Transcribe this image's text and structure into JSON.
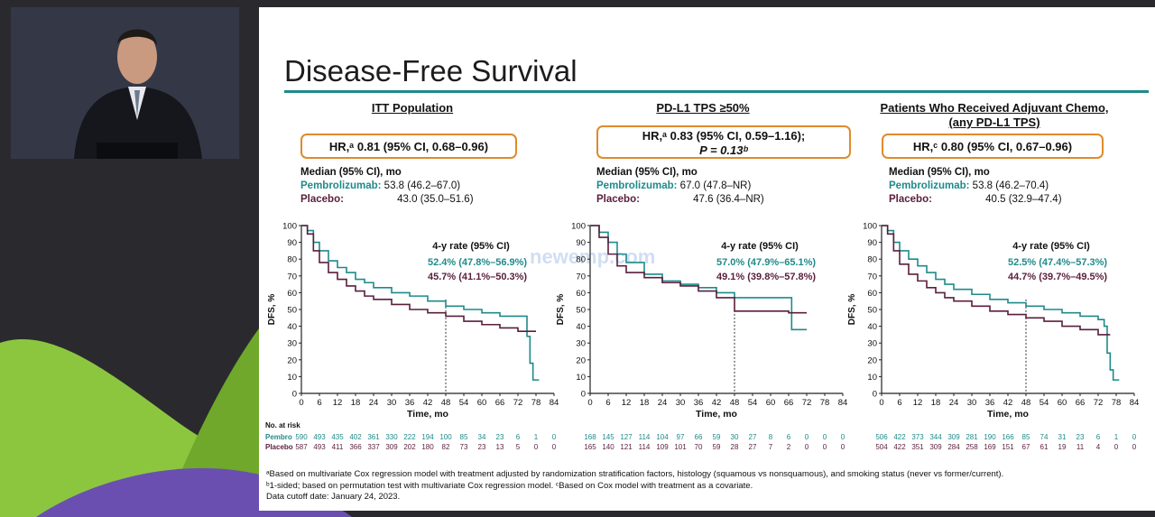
{
  "slide": {
    "title": "Disease-Free Survival",
    "watermark": "newemp.com"
  },
  "colors": {
    "pembro": "#1f8a8a",
    "placebo": "#5a1e3c",
    "accent_box": "#e08a2c",
    "title_rule": "#1f8a8a"
  },
  "panels": [
    {
      "heading": "ITT Population",
      "hr_text": "HR,ᵃ 0.81 (95% CI, 0.68–0.96)",
      "hr_line2": "",
      "median_title": "Median (95% CI), mo",
      "pembro_label": "Pembrolizumab:",
      "pembro_median": "53.8 (46.2–67.0)",
      "placebo_label": "Placebo:",
      "placebo_median": "43.0 (35.0–51.6)",
      "rate_title": "4-y rate (95% CI)",
      "pembro_rate": "52.4% (47.8%–56.9%)",
      "placebo_rate": "45.7% (41.1%–50.3%)"
    },
    {
      "heading": "PD-L1 TPS ≥50%",
      "hr_text": "HR,ᵃ 0.83 (95% CI, 0.59–1.16);",
      "hr_line2": "P = 0.13ᵇ",
      "median_title": "Median (95% CI), mo",
      "pembro_label": "Pembrolizumab:",
      "pembro_median": "67.0 (47.8–NR)",
      "placebo_label": "Placebo:",
      "placebo_median": "47.6 (36.4–NR)",
      "rate_title": "4-y rate (95% CI)",
      "pembro_rate": "57.0% (47.9%–65.1%)",
      "placebo_rate": "49.1% (39.8%–57.8%)"
    },
    {
      "heading": "Patients Who Received Adjuvant Chemo,",
      "heading2": "(any PD-L1 TPS)",
      "hr_text": "HR,ᶜ 0.80 (95% CI, 0.67–0.96)",
      "hr_line2": "",
      "median_title": "Median (95% CI), mo",
      "pembro_label": "Pembrolizumab:",
      "pembro_median": "53.8 (46.2–70.4)",
      "placebo_label": "Placebo:",
      "placebo_median": "40.5 (32.9–47.4)",
      "rate_title": "4-y rate (95% CI)",
      "pembro_rate": "52.5% (47.4%–57.3%)",
      "placebo_rate": "44.7% (39.7%–49.5%)"
    }
  ],
  "risk_table": {
    "title": "No. at risk",
    "pembro_label": "Pembro",
    "placebo_label": "Placebo",
    "itt_pembro": [
      "590",
      "493",
      "435",
      "402",
      "361",
      "330",
      "222",
      "194",
      "100",
      "85",
      "34",
      "23",
      "6",
      "1",
      "0"
    ],
    "itt_placebo": [
      "587",
      "493",
      "411",
      "366",
      "337",
      "309",
      "202",
      "180",
      "82",
      "73",
      "23",
      "13",
      "5",
      "0",
      "0"
    ],
    "pdl1_pembro": [
      "168",
      "145",
      "127",
      "114",
      "104",
      "97",
      "66",
      "59",
      "30",
      "27",
      "8",
      "6",
      "0",
      "0",
      "0"
    ],
    "pdl1_placebo": [
      "165",
      "140",
      "121",
      "114",
      "109",
      "101",
      "70",
      "59",
      "28",
      "27",
      "7",
      "2",
      "0",
      "0",
      "0"
    ],
    "chemo_pembro": [
      "506",
      "422",
      "373",
      "344",
      "309",
      "281",
      "190",
      "166",
      "85",
      "74",
      "31",
      "23",
      "6",
      "1",
      "0"
    ],
    "chemo_placebo": [
      "504",
      "422",
      "351",
      "309",
      "284",
      "258",
      "169",
      "151",
      "67",
      "61",
      "19",
      "11",
      "4",
      "0",
      "0"
    ]
  },
  "footnotes": [
    "ᵃBased on multivariate Cox regression model with treatment adjusted by randomization stratification factors, histology (squamous vs nonsquamous), and smoking status (never vs former/current).",
    "ᵇ1-sided; based on permutation test with multivariate Cox regression model. ᶜBased on Cox model with treatment as a covariate.",
    "Data cutoff date: January 24, 2023."
  ],
  "chart_data": [
    {
      "type": "line",
      "xlabel": "Time, mo",
      "ylabel": "DFS, %",
      "xlim": [
        0,
        84
      ],
      "ylim": [
        0,
        100
      ],
      "xticks": [
        0,
        6,
        12,
        18,
        24,
        30,
        36,
        42,
        48,
        54,
        60,
        66,
        72,
        78,
        84
      ],
      "yticks": [
        0,
        10,
        20,
        30,
        40,
        50,
        60,
        70,
        80,
        90,
        100
      ],
      "reference_x": 48,
      "series": [
        {
          "name": "Pembro",
          "x": [
            0,
            2,
            4,
            6,
            9,
            12,
            15,
            18,
            21,
            24,
            30,
            36,
            42,
            48,
            54,
            60,
            66,
            72,
            74,
            75,
            76,
            77,
            78,
            79
          ],
          "y": [
            100,
            97,
            90,
            85,
            79,
            75,
            72,
            68,
            66,
            63,
            60,
            58,
            55,
            52,
            50,
            48,
            46,
            46,
            46,
            34,
            18,
            8,
            8,
            8
          ]
        },
        {
          "name": "Placebo",
          "x": [
            0,
            2,
            4,
            6,
            9,
            12,
            15,
            18,
            21,
            24,
            30,
            36,
            42,
            48,
            54,
            60,
            66,
            72,
            76,
            77,
            78
          ],
          "y": [
            100,
            95,
            85,
            78,
            72,
            68,
            64,
            61,
            58,
            56,
            53,
            50,
            48,
            46,
            43,
            41,
            39,
            37,
            37,
            37,
            37
          ]
        }
      ]
    },
    {
      "type": "line",
      "xlabel": "Time, mo",
      "ylabel": "DFS, %",
      "xlim": [
        0,
        84
      ],
      "ylim": [
        0,
        100
      ],
      "xticks": [
        0,
        6,
        12,
        18,
        24,
        30,
        36,
        42,
        48,
        54,
        60,
        66,
        72,
        78,
        84
      ],
      "yticks": [
        0,
        10,
        20,
        30,
        40,
        50,
        60,
        70,
        80,
        90,
        100
      ],
      "reference_x": 48,
      "series": [
        {
          "name": "Pembro",
          "x": [
            0,
            3,
            6,
            9,
            12,
            18,
            24,
            30,
            36,
            42,
            48,
            54,
            60,
            66,
            67,
            72
          ],
          "y": [
            100,
            96,
            90,
            83,
            78,
            71,
            67,
            65,
            63,
            60,
            57,
            57,
            57,
            57,
            38,
            38
          ]
        },
        {
          "name": "Placebo",
          "x": [
            0,
            3,
            6,
            9,
            12,
            18,
            24,
            30,
            36,
            42,
            48,
            54,
            60,
            66,
            72
          ],
          "y": [
            100,
            93,
            83,
            76,
            72,
            69,
            66,
            64,
            61,
            57,
            49,
            49,
            49,
            48,
            48
          ]
        }
      ]
    },
    {
      "type": "line",
      "xlabel": "Time, mo",
      "ylabel": "DFS, %",
      "xlim": [
        0,
        84
      ],
      "ylim": [
        0,
        100
      ],
      "xticks": [
        0,
        6,
        12,
        18,
        24,
        30,
        36,
        42,
        48,
        54,
        60,
        66,
        72,
        78,
        84
      ],
      "yticks": [
        0,
        10,
        20,
        30,
        40,
        50,
        60,
        70,
        80,
        90,
        100
      ],
      "reference_x": 48,
      "series": [
        {
          "name": "Pembro",
          "x": [
            0,
            2,
            4,
            6,
            9,
            12,
            15,
            18,
            21,
            24,
            30,
            36,
            42,
            48,
            54,
            60,
            66,
            72,
            74,
            75,
            76,
            77,
            78,
            79
          ],
          "y": [
            100,
            97,
            90,
            85,
            80,
            76,
            72,
            68,
            65,
            62,
            59,
            56,
            54,
            52,
            50,
            48,
            46,
            44,
            40,
            24,
            14,
            8,
            8,
            8
          ]
        },
        {
          "name": "Placebo",
          "x": [
            0,
            2,
            4,
            6,
            9,
            12,
            15,
            18,
            21,
            24,
            30,
            36,
            42,
            48,
            54,
            60,
            66,
            72,
            74,
            76
          ],
          "y": [
            100,
            95,
            85,
            77,
            71,
            67,
            63,
            60,
            57,
            55,
            52,
            49,
            47,
            45,
            43,
            40,
            38,
            35,
            35,
            35
          ]
        }
      ]
    }
  ]
}
